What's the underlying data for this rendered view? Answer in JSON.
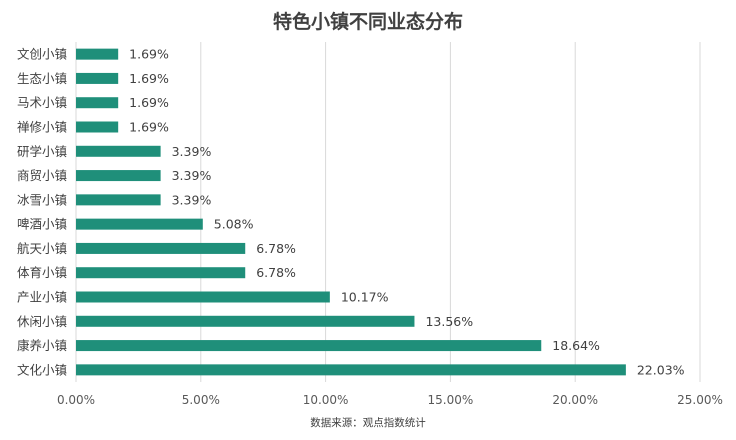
{
  "chart_data": {
    "type": "bar",
    "orientation": "horizontal",
    "title": "特色小镇不同业态分布",
    "source": "数据来源：观点指数统计",
    "categories": [
      "文创小镇",
      "生态小镇",
      "马术小镇",
      "禅修小镇",
      "研学小镇",
      "商贸小镇",
      "冰雪小镇",
      "啤酒小镇",
      "航天小镇",
      "体育小镇",
      "产业小镇",
      "休闲小镇",
      "康养小镇",
      "文化小镇"
    ],
    "values": [
      1.69,
      1.69,
      1.69,
      1.69,
      3.39,
      3.39,
      3.39,
      5.08,
      6.78,
      6.78,
      10.17,
      13.56,
      18.64,
      22.03
    ],
    "value_labels": [
      "1.69%",
      "1.69%",
      "1.69%",
      "1.69%",
      "3.39%",
      "3.39%",
      "3.39%",
      "5.08%",
      "6.78%",
      "6.78%",
      "10.17%",
      "13.56%",
      "18.64%",
      "22.03%"
    ],
    "xlim": [
      0,
      25
    ],
    "xticks": [
      0,
      5,
      10,
      15,
      20,
      25
    ],
    "xtick_labels": [
      "0.00%",
      "5.00%",
      "10.00%",
      "15.00%",
      "20.00%",
      "25.00%"
    ],
    "grid": true,
    "bar_color": "#1f8f7a"
  }
}
